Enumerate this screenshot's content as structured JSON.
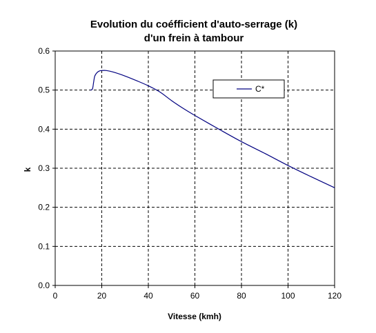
{
  "chart_data": {
    "type": "line",
    "title": "Evolution du coéfficient d'auto-serrage (k)",
    "subtitle": "d'un frein à tambour",
    "xlabel": "Vitesse (kmh)",
    "ylabel": "k",
    "xlim": [
      0,
      120
    ],
    "ylim": [
      0,
      0.6
    ],
    "x_ticks": [
      0,
      20,
      40,
      60,
      80,
      100,
      120
    ],
    "y_ticks": [
      0.0,
      0.1,
      0.2,
      0.3,
      0.4,
      0.5,
      0.6
    ],
    "x_tick_labels": [
      "0",
      "20",
      "40",
      "60",
      "80",
      "100",
      "120"
    ],
    "y_tick_labels": [
      "0.0",
      "0.1",
      "0.2",
      "0.3",
      "0.4",
      "0.5",
      "0.6"
    ],
    "grid": true,
    "legend_position": "top-right",
    "series": [
      {
        "name": "C*",
        "color": "#000080",
        "x": [
          15,
          16,
          16.5,
          17,
          18,
          19,
          20,
          22,
          25,
          30,
          35,
          40,
          45,
          50,
          55,
          60,
          70,
          80,
          90,
          100,
          110,
          120
        ],
        "y": [
          0.5,
          0.503,
          0.52,
          0.536,
          0.545,
          0.549,
          0.55,
          0.55,
          0.546,
          0.536,
          0.524,
          0.511,
          0.495,
          0.473,
          0.453,
          0.435,
          0.401,
          0.368,
          0.338,
          0.307,
          0.278,
          0.25
        ]
      }
    ]
  }
}
